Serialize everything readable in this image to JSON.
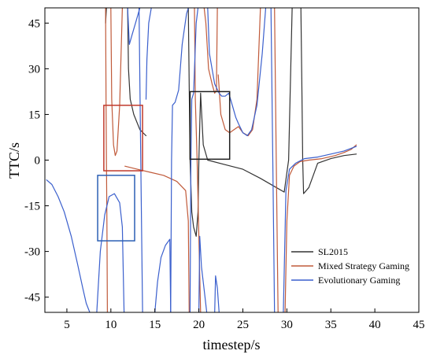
{
  "chart_data": {
    "type": "line",
    "title": "",
    "xlabel": "timestep/s",
    "ylabel": "TTC/s",
    "xlim": [
      2.5,
      45
    ],
    "ylim": [
      -50,
      50
    ],
    "xticks": [
      5,
      10,
      15,
      20,
      25,
      30,
      35,
      40,
      45
    ],
    "yticks": [
      -45,
      -30,
      -15,
      0,
      15,
      30,
      45
    ],
    "grid": false,
    "legend_position": "bottom-right",
    "series": [
      {
        "name": "SL2015",
        "color": "#333333",
        "segments": [
          [
            [
              9.4,
              45
            ],
            [
              9.5,
              50
            ]
          ],
          [
            [
              11.9,
              50
            ],
            [
              12.0,
              30
            ],
            [
              12.2,
              20
            ],
            [
              12.6,
              15
            ],
            [
              13.3,
              10
            ],
            [
              14.0,
              8
            ]
          ],
          [
            [
              18.8,
              50
            ],
            [
              19.0,
              0
            ],
            [
              19.2,
              -17
            ],
            [
              19.4,
              -22
            ],
            [
              19.7,
              -25
            ],
            [
              19.9,
              -17
            ],
            [
              20.0,
              0
            ],
            [
              20.2,
              22
            ],
            [
              20.5,
              5
            ],
            [
              21.0,
              0
            ],
            [
              23.0,
              -1.5
            ],
            [
              25.0,
              -3
            ],
            [
              27.0,
              -6
            ],
            [
              28.8,
              -9
            ],
            [
              29.7,
              -10.5
            ],
            [
              30.2,
              0
            ],
            [
              30.6,
              50
            ]
          ],
          [
            [
              31.6,
              50
            ],
            [
              31.7,
              25
            ],
            [
              31.8,
              0
            ],
            [
              31.9,
              -11
            ],
            [
              32.5,
              -9
            ],
            [
              33.0,
              -5
            ],
            [
              33.5,
              -1
            ],
            [
              35.0,
              0.5
            ],
            [
              36.5,
              1.5
            ],
            [
              37.9,
              2
            ]
          ]
        ]
      },
      {
        "name": "Mixed Strategy Gaming",
        "color": "#c05a3a",
        "segments": [
          [
            [
              9.4,
              50
            ],
            [
              9.45,
              20
            ],
            [
              9.5,
              0
            ],
            [
              9.55,
              -20
            ],
            [
              9.6,
              -50
            ]
          ],
          [
            [
              10.0,
              50
            ],
            [
              10.1,
              20
            ],
            [
              10.3,
              5
            ],
            [
              10.5,
              1.5
            ],
            [
              10.7,
              3
            ],
            [
              11.0,
              18
            ],
            [
              11.3,
              50
            ]
          ],
          [
            [
              11.6,
              -2
            ],
            [
              13.0,
              -3
            ],
            [
              14.5,
              -4
            ],
            [
              16.0,
              -5
            ],
            [
              17.5,
              -7
            ],
            [
              18.5,
              -10
            ],
            [
              18.8,
              -20
            ],
            [
              18.9,
              -50
            ]
          ],
          [
            [
              19.5,
              50
            ],
            [
              19.6,
              20
            ],
            [
              19.8,
              0
            ],
            [
              20.0,
              -25
            ],
            [
              20.2,
              -50
            ]
          ],
          [
            [
              20.6,
              50
            ],
            [
              20.8,
              45
            ],
            [
              21.1,
              30
            ],
            [
              21.5,
              25
            ],
            [
              21.8,
              22
            ],
            [
              22.0,
              23
            ],
            [
              22.1,
              50
            ]
          ],
          [
            [
              22.2,
              28
            ],
            [
              22.5,
              15
            ],
            [
              23.0,
              10
            ],
            [
              23.5,
              9
            ],
            [
              24.0,
              10
            ],
            [
              24.5,
              11
            ],
            [
              25.0,
              9
            ],
            [
              25.6,
              8
            ],
            [
              26.1,
              10
            ],
            [
              26.6,
              20
            ],
            [
              27.0,
              50
            ]
          ],
          [
            [
              28.6,
              50
            ],
            [
              28.8,
              0
            ],
            [
              29.0,
              -50
            ]
          ],
          [
            [
              29.8,
              -50
            ],
            [
              30.0,
              -20
            ],
            [
              30.3,
              -5
            ],
            [
              30.8,
              -2
            ],
            [
              31.5,
              -0.5
            ],
            [
              32.5,
              0
            ],
            [
              34.0,
              0.5
            ],
            [
              35.5,
              1.5
            ],
            [
              36.5,
              2.5
            ],
            [
              37.3,
              3.5
            ],
            [
              37.9,
              5
            ]
          ]
        ]
      },
      {
        "name": "Evolutionary Gaming",
        "color": "#3a5fcd",
        "segments": [
          [
            [
              2.7,
              -6.5
            ],
            [
              3.3,
              -8
            ],
            [
              4.0,
              -12
            ],
            [
              4.7,
              -17
            ],
            [
              5.5,
              -25
            ],
            [
              6.2,
              -34
            ],
            [
              6.8,
              -42
            ],
            [
              7.2,
              -47
            ],
            [
              7.6,
              -50
            ]
          ],
          [
            [
              8.4,
              -50
            ],
            [
              8.8,
              -30
            ],
            [
              9.3,
              -18
            ],
            [
              9.8,
              -12
            ],
            [
              10.4,
              -11
            ],
            [
              11.0,
              -14
            ],
            [
              11.3,
              -22
            ],
            [
              11.5,
              -50
            ]
          ],
          [
            [
              11.9,
              50
            ],
            [
              12.1,
              38
            ],
            [
              12.4,
              41
            ],
            [
              12.8,
              45
            ],
            [
              13.3,
              50
            ]
          ],
          [
            [
              13.2,
              50
            ],
            [
              13.4,
              0
            ],
            [
              13.6,
              -50
            ]
          ],
          [
            [
              14.0,
              20
            ],
            [
              14.1,
              33
            ],
            [
              14.3,
              45
            ],
            [
              14.6,
              50
            ]
          ],
          [
            [
              15.0,
              -50
            ],
            [
              15.3,
              -40
            ],
            [
              15.7,
              -32
            ],
            [
              16.2,
              -28
            ],
            [
              16.7,
              -26
            ],
            [
              16.8,
              -50
            ]
          ],
          [
            [
              16.8,
              -50
            ],
            [
              16.9,
              0
            ],
            [
              17.0,
              18
            ],
            [
              17.3,
              19
            ],
            [
              17.7,
              23
            ],
            [
              18.1,
              38
            ],
            [
              18.6,
              48
            ],
            [
              18.8,
              50
            ]
          ],
          [
            [
              19.0,
              -50
            ],
            [
              19.1,
              0
            ],
            [
              19.2,
              20
            ],
            [
              19.4,
              22
            ],
            [
              19.7,
              45
            ],
            [
              19.9,
              50
            ]
          ],
          [
            [
              20.0,
              -50
            ],
            [
              20.1,
              -25
            ],
            [
              20.3,
              -35
            ],
            [
              20.7,
              -45
            ],
            [
              20.9,
              -50
            ]
          ],
          [
            [
              21.0,
              50
            ],
            [
              21.2,
              35
            ],
            [
              21.8,
              25
            ],
            [
              22.3,
              22
            ],
            [
              22.6,
              21
            ],
            [
              23.0,
              21
            ],
            [
              23.4,
              22
            ],
            [
              23.8,
              18
            ],
            [
              24.2,
              14
            ],
            [
              24.5,
              12
            ],
            [
              25.0,
              9
            ],
            [
              25.5,
              8
            ],
            [
              26.0,
              10
            ],
            [
              26.6,
              18
            ],
            [
              27.2,
              35
            ],
            [
              27.6,
              50
            ]
          ],
          [
            [
              21.8,
              -50
            ],
            [
              21.9,
              -38
            ],
            [
              22.1,
              -42
            ],
            [
              22.3,
              -50
            ]
          ],
          [
            [
              28.2,
              50
            ],
            [
              28.4,
              0
            ],
            [
              28.6,
              -50
            ]
          ],
          [
            [
              29.6,
              -50
            ],
            [
              29.9,
              -10
            ],
            [
              30.3,
              -3
            ],
            [
              31.0,
              -1
            ],
            [
              32.0,
              0.5
            ],
            [
              33.5,
              1
            ],
            [
              35.0,
              2
            ],
            [
              36.5,
              3
            ],
            [
              37.9,
              4.5
            ]
          ]
        ]
      }
    ],
    "highlight_boxes": [
      {
        "color": "#c0392b",
        "x": [
          9.2,
          13.6
        ],
        "y": [
          -3.5,
          18
        ]
      },
      {
        "color": "#1f1f1f",
        "x": [
          19.0,
          23.5
        ],
        "y": [
          0.3,
          22.5
        ]
      },
      {
        "color": "#2b5fb4",
        "x": [
          8.5,
          12.7
        ],
        "y": [
          -26.5,
          -5
        ]
      }
    ]
  }
}
